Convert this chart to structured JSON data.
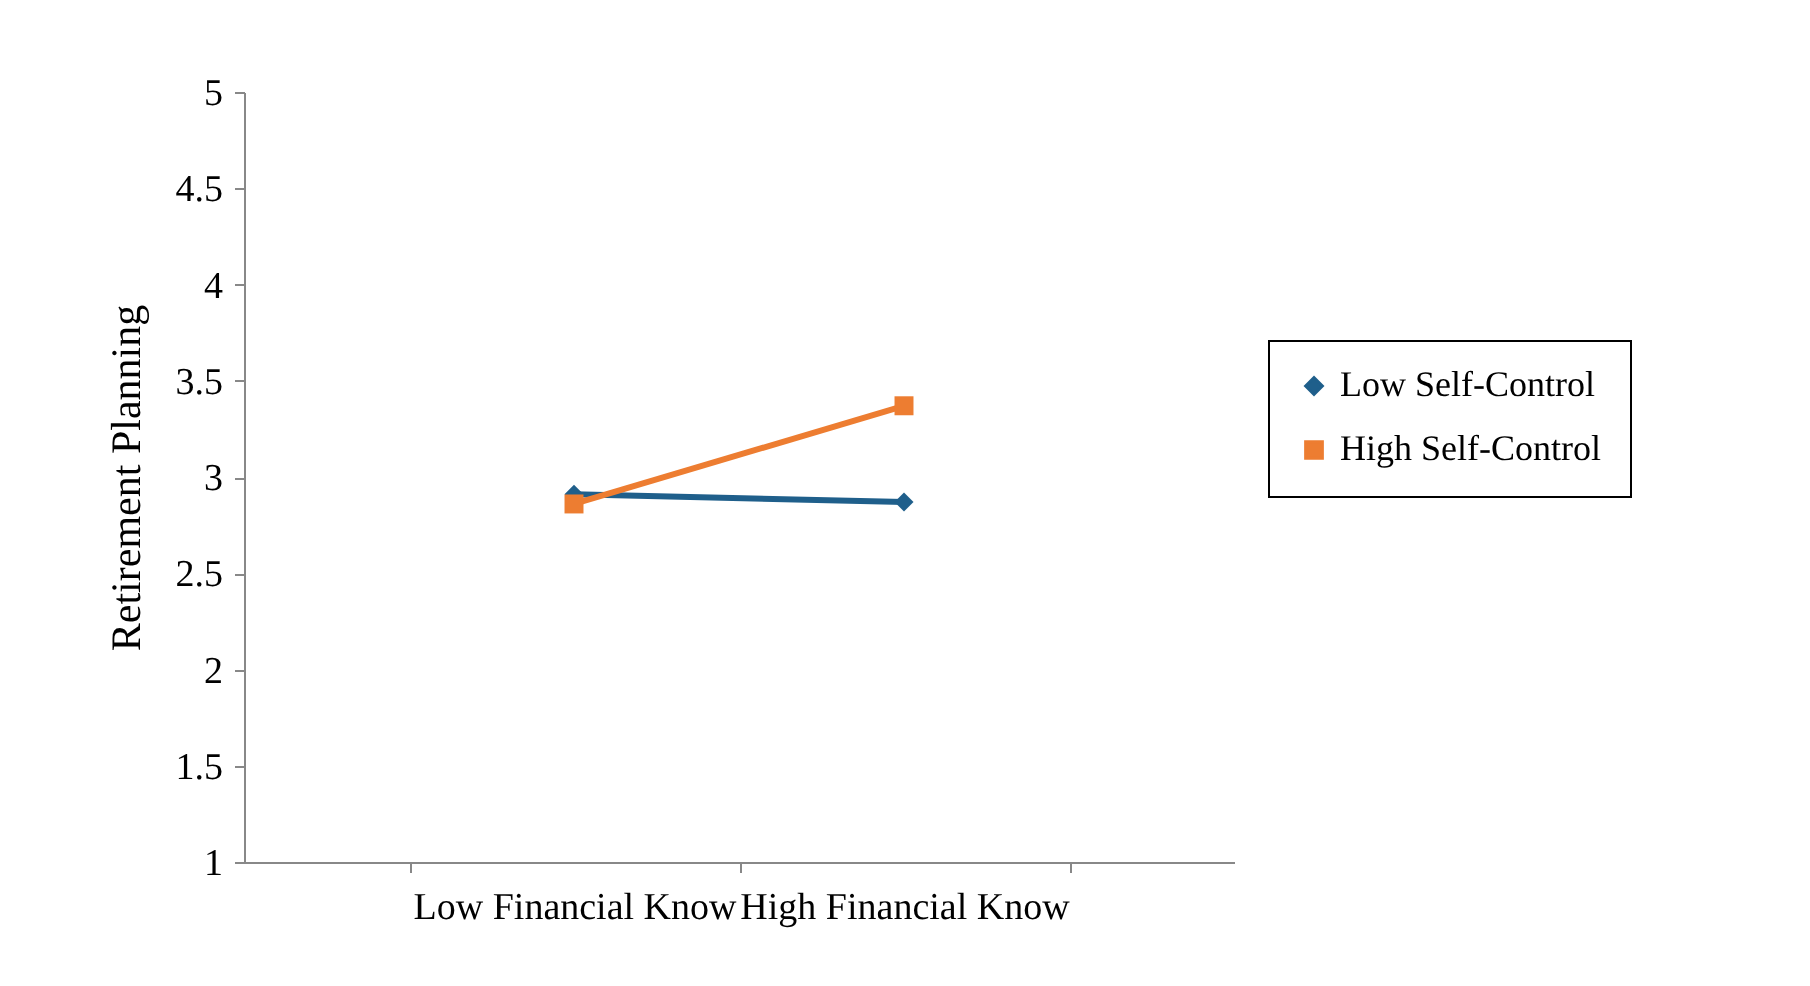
{
  "chart_data": {
    "type": "line",
    "ylabel": "Retirement Planning",
    "categories": [
      "Low Financial Know",
      "High Financial Know"
    ],
    "series": [
      {
        "name": "Low Self-Control",
        "color": "#1f5f8b",
        "marker": "diamond",
        "line_style": "solid",
        "values": [
          2.91,
          2.87
        ]
      },
      {
        "name": "High Self-Control",
        "color": "#ed7d31",
        "marker": "square",
        "line_style": "solid",
        "values": [
          2.86,
          3.37
        ]
      }
    ],
    "ylim": [
      1,
      5
    ],
    "yticks": [
      1,
      1.5,
      2,
      2.5,
      3,
      3.5,
      4,
      4.5,
      5
    ],
    "grid": false,
    "legend": "right"
  }
}
